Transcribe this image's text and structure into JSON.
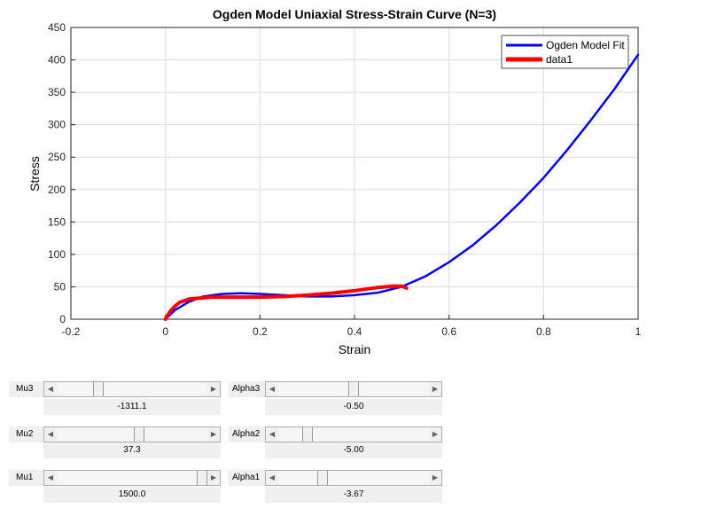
{
  "chart_data": {
    "type": "line",
    "title": "Ogden Model Uniaxial Stress-Strain Curve (N=3)",
    "xlabel": "Strain",
    "ylabel": "Stress",
    "xlim": [
      -0.2,
      1
    ],
    "ylim": [
      0,
      450
    ],
    "xticks": [
      "-0.2",
      "0",
      "0.2",
      "0.4",
      "0.6",
      "0.8",
      "1"
    ],
    "xtick_values": [
      -0.2,
      0,
      0.2,
      0.4,
      0.6,
      0.8,
      1
    ],
    "yticks": [
      "0",
      "50",
      "100",
      "150",
      "200",
      "250",
      "300",
      "350",
      "400",
      "450"
    ],
    "ytick_values": [
      0,
      50,
      100,
      150,
      200,
      250,
      300,
      350,
      400,
      450
    ],
    "grid": true,
    "legend_position": "top-right",
    "series": [
      {
        "name": "Ogden Model Fit",
        "color": "#0000ff",
        "x": [
          0,
          0.02,
          0.05,
          0.08,
          0.12,
          0.16,
          0.2,
          0.25,
          0.3,
          0.35,
          0.4,
          0.45,
          0.5,
          0.55,
          0.6,
          0.65,
          0.7,
          0.75,
          0.8,
          0.85,
          0.9,
          0.95,
          1.0
        ],
        "y": [
          0,
          14,
          27,
          35,
          39,
          40,
          39,
          37,
          35,
          35,
          37,
          41,
          50,
          66,
          88,
          114,
          145,
          180,
          218,
          261,
          307,
          355,
          408
        ]
      },
      {
        "name": "data1",
        "color": "#ff0000",
        "x": [
          0,
          0.01,
          0.02,
          0.03,
          0.05,
          0.08,
          0.1,
          0.15,
          0.2,
          0.25,
          0.3,
          0.35,
          0.4,
          0.45,
          0.48,
          0.5,
          0.51
        ],
        "y": [
          0,
          12,
          20,
          26,
          31,
          33,
          34,
          34,
          34,
          35,
          37,
          40,
          44,
          49,
          51,
          51,
          48
        ]
      }
    ]
  },
  "controls": [
    {
      "label": "Mu3",
      "value": "-1311.1",
      "fraction": 0.26
    },
    {
      "label": "Mu2",
      "value": "37.3",
      "fraction": 0.55
    },
    {
      "label": "Mu1",
      "value": "1500.0",
      "fraction": 1.0
    },
    {
      "label": "Alpha3",
      "value": "-0.50",
      "fraction": 0.5
    },
    {
      "label": "Alpha2",
      "value": "-5.00",
      "fraction": 0.17
    },
    {
      "label": "Alpha1",
      "value": "-3.67",
      "fraction": 0.28
    }
  ]
}
